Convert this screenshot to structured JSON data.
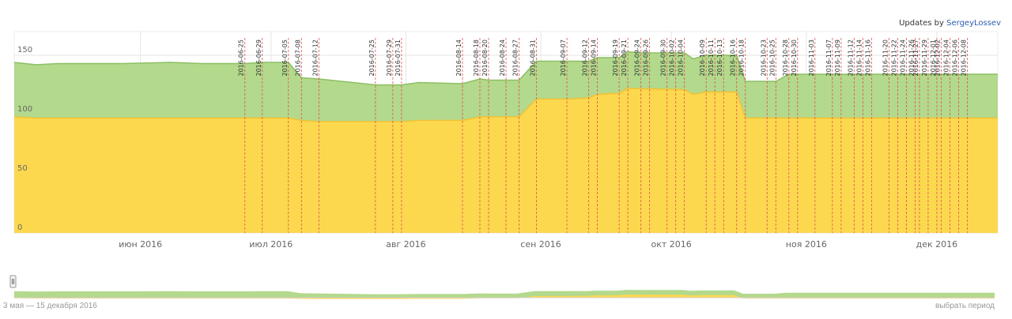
{
  "header": {
    "updates_prefix": "Updates by",
    "updates_author": "SergeyLossev"
  },
  "footer": {
    "period_range": "3 мая — 15 декабря 2016",
    "select_period": "выбрать период"
  },
  "colors": {
    "green_area": "#b3d98c",
    "green_line": "#8cc063",
    "yellow_area": "#fcd84f",
    "yellow_line": "#f1c232",
    "marker_line": "#e25050",
    "grid": "#e6e6e6"
  },
  "chart_data": {
    "type": "area",
    "stacked": false,
    "x_range": [
      "2016-05-03",
      "2016-12-15"
    ],
    "ylim": [
      0,
      170
    ],
    "yticks": [
      0,
      50,
      100,
      150
    ],
    "x_tick_labels": [
      {
        "date": "2016-06-01",
        "label": "июн 2016"
      },
      {
        "date": "2016-07-01",
        "label": "июл 2016"
      },
      {
        "date": "2016-08-01",
        "label": "авг 2016"
      },
      {
        "date": "2016-09-01",
        "label": "сен 2016"
      },
      {
        "date": "2016-10-01",
        "label": "окт 2016"
      },
      {
        "date": "2016-11-01",
        "label": "ноя 2016"
      },
      {
        "date": "2016-12-01",
        "label": "дек 2016"
      }
    ],
    "series": [
      {
        "color": "#b3d98c",
        "points": [
          [
            "2016-05-03",
            144
          ],
          [
            "2016-05-08",
            142
          ],
          [
            "2016-05-13",
            143
          ],
          [
            "2016-05-28",
            143
          ],
          [
            "2016-06-08",
            144
          ],
          [
            "2016-06-15",
            143
          ],
          [
            "2016-06-25",
            143
          ],
          [
            "2016-06-29",
            144
          ],
          [
            "2016-07-05",
            144
          ],
          [
            "2016-07-08",
            131
          ],
          [
            "2016-07-12",
            130
          ],
          [
            "2016-07-25",
            125
          ],
          [
            "2016-07-29",
            125
          ],
          [
            "2016-07-31",
            125
          ],
          [
            "2016-08-04",
            127
          ],
          [
            "2016-08-14",
            126
          ],
          [
            "2016-08-18",
            130
          ],
          [
            "2016-08-20",
            129
          ],
          [
            "2016-08-24",
            129
          ],
          [
            "2016-08-27",
            129
          ],
          [
            "2016-08-31",
            145
          ],
          [
            "2016-09-07",
            145
          ],
          [
            "2016-09-12",
            145
          ],
          [
            "2016-09-14",
            148
          ],
          [
            "2016-09-19",
            148
          ],
          [
            "2016-09-21",
            153
          ],
          [
            "2016-09-24",
            152
          ],
          [
            "2016-09-26",
            152
          ],
          [
            "2016-09-30",
            152
          ],
          [
            "2016-10-02",
            152
          ],
          [
            "2016-10-04",
            152
          ],
          [
            "2016-10-06",
            147
          ],
          [
            "2016-10-09",
            150
          ],
          [
            "2016-10-11",
            150
          ],
          [
            "2016-10-13",
            150
          ],
          [
            "2016-10-16",
            150
          ],
          [
            "2016-10-18",
            128
          ],
          [
            "2016-10-23",
            128
          ],
          [
            "2016-10-25",
            128
          ],
          [
            "2016-10-28",
            134
          ],
          [
            "2016-11-30",
            134
          ],
          [
            "2016-12-15",
            134
          ]
        ]
      },
      {
        "color": "#fcd84f",
        "points": [
          [
            "2016-05-03",
            98
          ],
          [
            "2016-05-08",
            97
          ],
          [
            "2016-05-13",
            97
          ],
          [
            "2016-06-10",
            97
          ],
          [
            "2016-06-15",
            97
          ],
          [
            "2016-06-29",
            97
          ],
          [
            "2016-07-05",
            97
          ],
          [
            "2016-07-08",
            95
          ],
          [
            "2016-07-12",
            94
          ],
          [
            "2016-07-25",
            94
          ],
          [
            "2016-07-31",
            94
          ],
          [
            "2016-08-04",
            95
          ],
          [
            "2016-08-14",
            95
          ],
          [
            "2016-08-18",
            98
          ],
          [
            "2016-08-27",
            98
          ],
          [
            "2016-08-31",
            113
          ],
          [
            "2016-09-07",
            113
          ],
          [
            "2016-09-12",
            114
          ],
          [
            "2016-09-14",
            117
          ],
          [
            "2016-09-19",
            118
          ],
          [
            "2016-09-21",
            122
          ],
          [
            "2016-10-04",
            121
          ],
          [
            "2016-10-06",
            117
          ],
          [
            "2016-10-09",
            119
          ],
          [
            "2016-10-16",
            119
          ],
          [
            "2016-10-18",
            97
          ],
          [
            "2016-12-15",
            97
          ]
        ]
      }
    ],
    "event_markers": [
      "2016-06-25",
      "2016-06-29",
      "2016-07-05",
      "2016-07-08",
      "2016-07-12",
      "2016-07-25",
      "2016-07-29",
      "2016-07-31",
      "2016-08-14",
      "2016-08-18",
      "2016-08-20",
      "2016-08-24",
      "2016-08-27",
      "2016-08-31",
      "2016-09-07",
      "2016-09-12",
      "2016-09-14",
      "2016-09-19",
      "2016-09-21",
      "2016-09-24",
      "2016-09-26",
      "2016-09-30",
      "2016-10-02",
      "2016-10-04",
      "2016-10-09",
      "2016-10-11",
      "2016-10-13",
      "2016-10-16",
      "2016-10-18",
      "2016-10-23",
      "2016-10-25",
      "2016-10-28",
      "2016-10-30",
      "2016-11-03",
      "2016-11-07",
      "2016-11-09",
      "2016-11-12",
      "2016-11-14",
      "2016-11-16",
      "2016-11-20",
      "2016-11-22",
      "2016-11-24",
      "2016-11-26",
      "2016-11-27",
      "2016-11-29",
      "2016-12-01",
      "2016-12-02",
      "2016-12-04",
      "2016-12-06",
      "2016-12-08"
    ]
  }
}
